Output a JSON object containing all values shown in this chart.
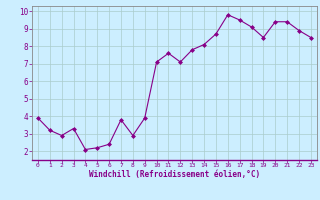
{
  "x": [
    0,
    1,
    2,
    3,
    4,
    5,
    6,
    7,
    8,
    9,
    10,
    11,
    12,
    13,
    14,
    15,
    16,
    17,
    18,
    19,
    20,
    21,
    22,
    23
  ],
  "y": [
    3.9,
    3.2,
    2.9,
    3.3,
    2.1,
    2.2,
    2.4,
    3.8,
    2.9,
    3.9,
    7.1,
    7.6,
    7.1,
    7.8,
    8.1,
    8.7,
    9.8,
    9.5,
    9.1,
    8.5,
    9.4,
    9.4,
    8.9,
    8.5
  ],
  "line_color": "#880088",
  "marker": "D",
  "marker_size": 2.0,
  "bg_color": "#cceeff",
  "grid_color": "#aacccc",
  "xlabel": "Windchill (Refroidissement éolien,°C)",
  "xlabel_color": "#880088",
  "tick_color": "#880088",
  "spine_color": "#888888",
  "xlim": [
    -0.5,
    23.5
  ],
  "ylim": [
    1.5,
    10.3
  ],
  "yticks": [
    2,
    3,
    4,
    5,
    6,
    7,
    8,
    9,
    10
  ],
  "xticks": [
    0,
    1,
    2,
    3,
    4,
    5,
    6,
    7,
    8,
    9,
    10,
    11,
    12,
    13,
    14,
    15,
    16,
    17,
    18,
    19,
    20,
    21,
    22,
    23
  ]
}
